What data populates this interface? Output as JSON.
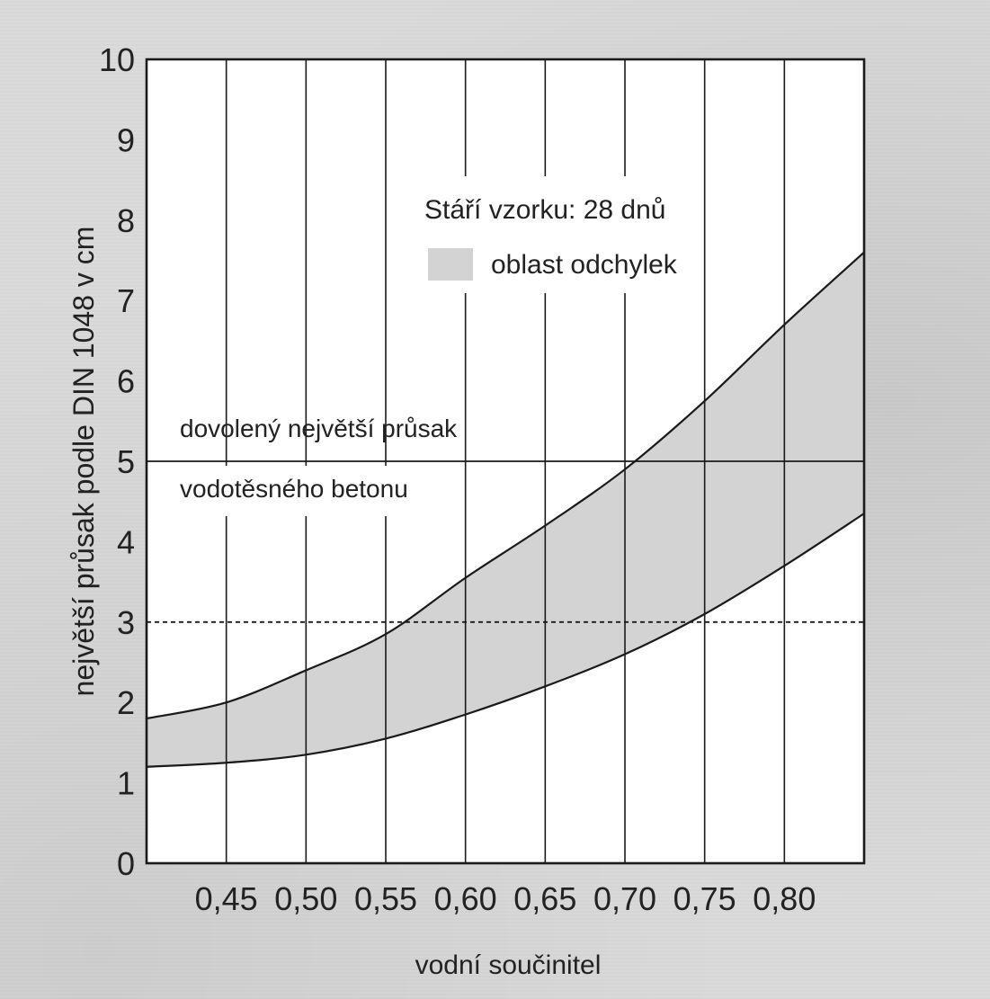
{
  "chart_data": {
    "type": "area",
    "xlabel": "vodní součinitel",
    "ylabel": "největší průsak podle DIN 1048 v cm",
    "xlim": [
      0.4,
      0.85
    ],
    "ylim": [
      0,
      10
    ],
    "x_ticks": [
      "0,45",
      "0,50",
      "0,55",
      "0,60",
      "0,65",
      "0,70",
      "0,75",
      "0,80"
    ],
    "x_tick_values": [
      0.45,
      0.5,
      0.55,
      0.6,
      0.65,
      0.7,
      0.75,
      0.8
    ],
    "y_ticks": [
      "0",
      "1",
      "2",
      "3",
      "4",
      "5",
      "6",
      "7",
      "8",
      "9",
      "10"
    ],
    "grid": "vertical",
    "series": [
      {
        "x": [
          0.4,
          0.45,
          0.5,
          0.55,
          0.6,
          0.65,
          0.7,
          0.75,
          0.8,
          0.85
        ],
        "values": [
          1.8,
          2.0,
          2.4,
          2.85,
          3.55,
          4.2,
          4.9,
          5.75,
          6.7,
          7.6
        ]
      },
      {
        "x": [
          0.4,
          0.45,
          0.5,
          0.55,
          0.6,
          0.65,
          0.7,
          0.75,
          0.8,
          0.85
        ],
        "values": [
          1.2,
          1.25,
          1.35,
          1.55,
          1.85,
          2.2,
          2.6,
          3.1,
          3.7,
          4.35
        ]
      }
    ],
    "band_label": "oblast odchylek",
    "annotation_age": "Stáří vzorku:  28 dnů",
    "reference_lines": [
      {
        "y": 5,
        "style": "solid",
        "label_line1": "dovolený největší průsak",
        "label_line2": "vodotěsného betonu"
      },
      {
        "y": 3,
        "style": "dashed"
      }
    ],
    "colors": {
      "band": "#d3d3d3",
      "plot_bg": "#ffffff",
      "line": "#1a1a1a",
      "page": "#dadada"
    }
  }
}
